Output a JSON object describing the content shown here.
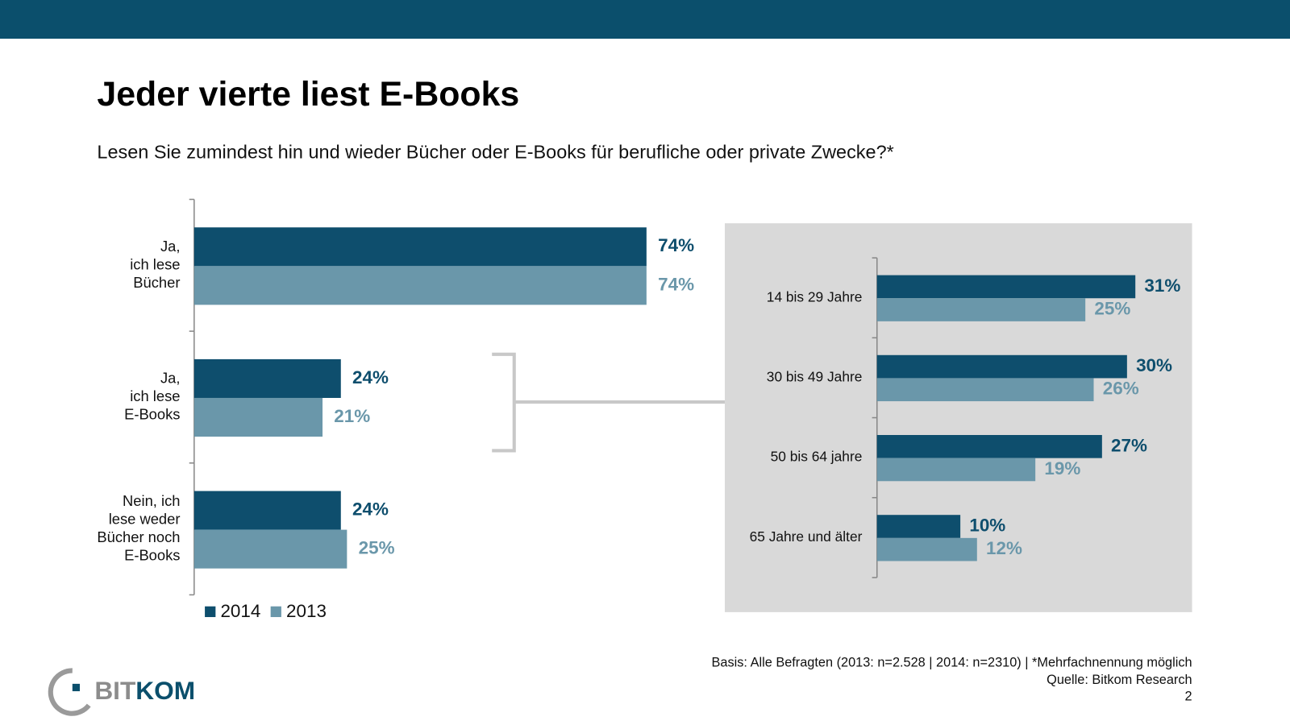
{
  "title": "Jeder vierte liest E-Books",
  "subtitle": "Lesen Sie zumindest hin und wieder Bücher oder E-Books für berufliche oder private Zwecke?*",
  "chart_data": [
    {
      "type": "bar",
      "orientation": "horizontal",
      "categories": [
        [
          "Ja,",
          "ich lese",
          "Bücher"
        ],
        [
          "Ja,",
          "ich lese",
          "E-Books"
        ],
        [
          "Nein, ich",
          "lese weder",
          "Bücher noch",
          "E-Books"
        ]
      ],
      "series": [
        {
          "name": "2014",
          "color": "#0e4e6d",
          "values": [
            74,
            24,
            24
          ],
          "value_labels": [
            "74%",
            "24%",
            "24%"
          ]
        },
        {
          "name": "2013",
          "color": "#6a97aa",
          "values": [
            74,
            21,
            25
          ],
          "value_labels": [
            "74%",
            "21%",
            "25%"
          ]
        }
      ],
      "xlim": [
        0,
        100
      ],
      "legend": "bottom-left"
    },
    {
      "type": "bar",
      "orientation": "horizontal",
      "categories": [
        "14 bis 29 Jahre",
        "30 bis 49 Jahre",
        "50 bis 64 jahre",
        "65 Jahre und älter"
      ],
      "series": [
        {
          "name": "2014",
          "color": "#0e4e6d",
          "values": [
            31,
            30,
            27,
            10
          ],
          "value_labels": [
            "31%",
            "30%",
            "27%",
            "10%"
          ]
        },
        {
          "name": "2013",
          "color": "#6a97aa",
          "values": [
            25,
            26,
            19,
            12
          ],
          "value_labels": [
            "25%",
            "26%",
            "19%",
            "12%"
          ]
        }
      ],
      "xlim": [
        0,
        100
      ]
    }
  ],
  "footer": {
    "basis": "Basis: Alle Befragten (2013: n=2.528 | 2014: n=2310) | *Mehrfachnennung möglich",
    "source": "Quelle: Bitkom Research",
    "page": "2"
  },
  "logo": {
    "part1": "BIT",
    "part2": "KOM"
  }
}
